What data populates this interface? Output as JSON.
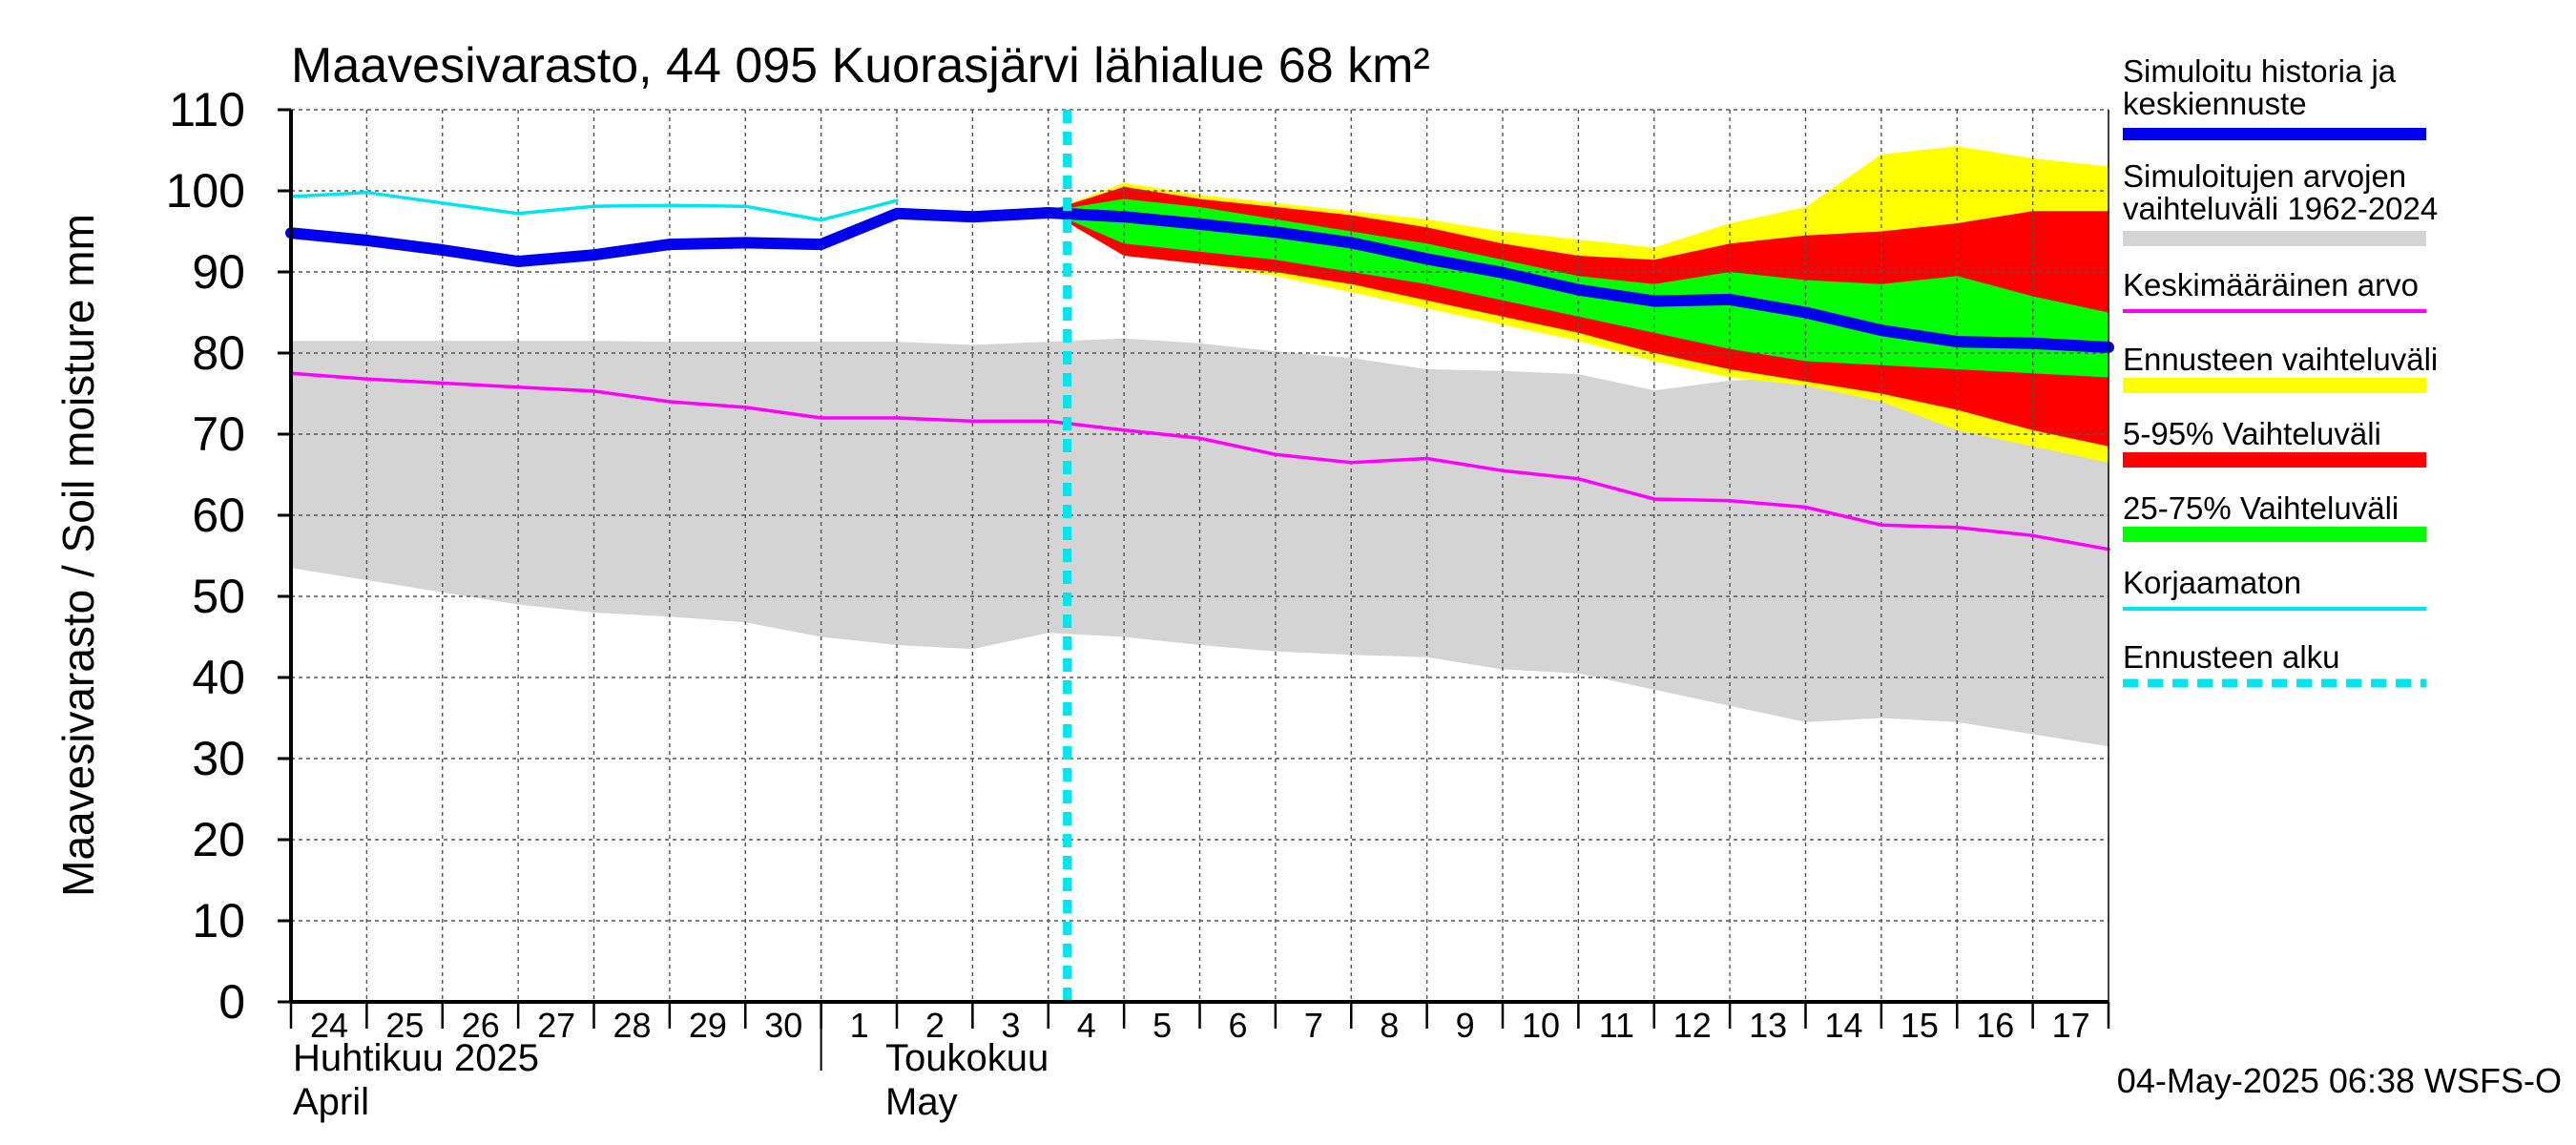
{
  "chart_data": {
    "type": "area",
    "title": "Maavesivarasto, 44 095 Kuorasjärvi lähialue 68 km²",
    "ylabel": "Maavesivarasto / Soil moisture   mm",
    "xlabel": "",
    "ylim": [
      0,
      110
    ],
    "yticks": [
      0,
      10,
      20,
      30,
      40,
      50,
      60,
      70,
      80,
      90,
      100,
      110
    ],
    "grid": true,
    "legend_position": "right",
    "x_tick_labels": [
      "24",
      "25",
      "26",
      "27",
      "28",
      "29",
      "30",
      "1",
      "2",
      "3",
      "4",
      "5",
      "6",
      "7",
      "8",
      "9",
      "10",
      "11",
      "12",
      "13",
      "14",
      "15",
      "16",
      "17"
    ],
    "x_dates": [
      "2025-04-24",
      "2025-04-25",
      "2025-04-26",
      "2025-04-27",
      "2025-04-28",
      "2025-04-29",
      "2025-04-30",
      "2025-05-01",
      "2025-05-02",
      "2025-05-03",
      "2025-05-04",
      "2025-05-05",
      "2025-05-06",
      "2025-05-07",
      "2025-05-08",
      "2025-05-09",
      "2025-05-10",
      "2025-05-11",
      "2025-05-12",
      "2025-05-13",
      "2025-05-14",
      "2025-05-15",
      "2025-05-16",
      "2025-05-17",
      "2025-05-18"
    ],
    "month_labels": [
      {
        "line1": "Huhtikuu  2025",
        "line2": "April"
      },
      {
        "line1": "Toukokuu",
        "line2": "May"
      }
    ],
    "forecast_start": "2025-05-04",
    "timestamp": "04-May-2025 06:38 WSFS-O",
    "colors": {
      "history_range": "#d4d4d4",
      "history_mean": "#ff00ff",
      "simulated": "#0000ee",
      "uncorrected": "#00e5ee",
      "forecast_range": "#ffff00",
      "p5_95": "#ff0000",
      "p25_75": "#00ff00",
      "forecast_start": "#00e5ee"
    },
    "series": {
      "history_range": {
        "dates": [
          "2025-04-24",
          "2025-04-25",
          "2025-04-26",
          "2025-04-27",
          "2025-04-28",
          "2025-04-29",
          "2025-04-30",
          "2025-05-01",
          "2025-05-02",
          "2025-05-03",
          "2025-05-04",
          "2025-05-05",
          "2025-05-06",
          "2025-05-07",
          "2025-05-08",
          "2025-05-09",
          "2025-05-10",
          "2025-05-11",
          "2025-05-12",
          "2025-05-13",
          "2025-05-14",
          "2025-05-15",
          "2025-05-16",
          "2025-05-17",
          "2025-05-18"
        ],
        "upper": [
          81.5,
          81.5,
          81.5,
          81.5,
          81.5,
          81.4,
          81.4,
          81.4,
          81.4,
          81.0,
          81.4,
          81.8,
          81.2,
          80.2,
          79.4,
          78.0,
          77.8,
          77.4,
          75.4,
          76.6,
          77.0,
          77.0,
          76.2,
          76.8,
          75.6
        ],
        "lower": [
          53.5,
          52.0,
          50.5,
          49.0,
          48.0,
          47.5,
          46.8,
          45.0,
          44.0,
          43.5,
          45.5,
          45.0,
          44.0,
          43.2,
          42.8,
          42.5,
          41.0,
          40.5,
          38.5,
          36.5,
          34.5,
          35.0,
          34.5,
          33.0,
          31.5
        ]
      },
      "history_mean": {
        "dates": [
          "2025-04-24",
          "2025-04-25",
          "2025-04-26",
          "2025-04-27",
          "2025-04-28",
          "2025-04-29",
          "2025-04-30",
          "2025-05-01",
          "2025-05-02",
          "2025-05-03",
          "2025-05-04",
          "2025-05-05",
          "2025-05-06",
          "2025-05-07",
          "2025-05-08",
          "2025-05-09",
          "2025-05-10",
          "2025-05-11",
          "2025-05-12",
          "2025-05-13",
          "2025-05-14",
          "2025-05-15",
          "2025-05-16",
          "2025-05-17",
          "2025-05-18"
        ],
        "values": [
          77.5,
          76.8,
          76.3,
          75.8,
          75.3,
          74.0,
          73.3,
          72.0,
          72.0,
          71.6,
          71.6,
          70.5,
          69.5,
          67.5,
          66.5,
          67.0,
          65.5,
          64.5,
          62.0,
          61.8,
          61.0,
          58.8,
          58.5,
          57.5,
          55.8
        ]
      },
      "uncorrected": {
        "dates": [
          "2025-04-24",
          "2025-04-25",
          "2025-04-26",
          "2025-04-27",
          "2025-04-28",
          "2025-04-29",
          "2025-04-30",
          "2025-05-01",
          "2025-05-02"
        ],
        "values": [
          99.3,
          99.8,
          98.5,
          97.2,
          98.1,
          98.2,
          98.1,
          96.4,
          98.8
        ]
      },
      "simulated": {
        "dates": [
          "2025-04-24",
          "2025-04-25",
          "2025-04-26",
          "2025-04-27",
          "2025-04-28",
          "2025-04-29",
          "2025-04-30",
          "2025-05-01",
          "2025-05-02",
          "2025-05-03",
          "2025-05-04",
          "2025-05-05",
          "2025-05-06",
          "2025-05-07",
          "2025-05-08",
          "2025-05-09",
          "2025-05-10",
          "2025-05-11",
          "2025-05-12",
          "2025-05-13",
          "2025-05-14",
          "2025-05-15",
          "2025-05-16",
          "2025-05-17",
          "2025-05-18"
        ],
        "values": [
          94.8,
          93.9,
          92.7,
          91.3,
          92.1,
          93.4,
          93.6,
          93.4,
          97.2,
          96.8,
          97.3,
          96.8,
          95.9,
          94.9,
          93.6,
          91.6,
          89.9,
          87.8,
          86.4,
          86.6,
          85.0,
          82.8,
          81.4,
          81.2,
          80.7
        ]
      },
      "forecast_range": {
        "dates": [
          "2025-05-04",
          "2025-05-05",
          "2025-05-06",
          "2025-05-07",
          "2025-05-08",
          "2025-05-09",
          "2025-05-10",
          "2025-05-11",
          "2025-05-12",
          "2025-05-13",
          "2025-05-14",
          "2025-05-15",
          "2025-05-16",
          "2025-05-17",
          "2025-05-18"
        ],
        "upper": [
          97.5,
          101.0,
          99.5,
          98.5,
          97.5,
          96.5,
          95.0,
          94.0,
          93.0,
          96.0,
          98.0,
          104.5,
          105.5,
          104.0,
          103.0
        ],
        "lower": [
          97.5,
          92.0,
          91.0,
          89.5,
          87.5,
          85.5,
          83.5,
          81.5,
          79.0,
          77.0,
          76.0,
          74.0,
          70.5,
          68.5,
          66.5
        ]
      },
      "p5_95": {
        "dates": [
          "2025-05-04",
          "2025-05-05",
          "2025-05-06",
          "2025-05-07",
          "2025-05-08",
          "2025-05-09",
          "2025-05-10",
          "2025-05-11",
          "2025-05-12",
          "2025-05-13",
          "2025-05-14",
          "2025-05-15",
          "2025-05-16",
          "2025-05-17",
          "2025-05-18"
        ],
        "upper": [
          97.5,
          100.5,
          99.0,
          98.0,
          97.0,
          95.5,
          93.5,
          92.0,
          91.5,
          93.5,
          94.5,
          95.0,
          96.0,
          97.5,
          97.5
        ],
        "lower": [
          97.5,
          92.0,
          91.0,
          90.0,
          88.5,
          86.5,
          84.5,
          82.5,
          80.0,
          78.0,
          76.5,
          75.0,
          73.0,
          70.5,
          68.5
        ]
      },
      "p25_75": {
        "dates": [
          "2025-05-04",
          "2025-05-05",
          "2025-05-06",
          "2025-05-07",
          "2025-05-08",
          "2025-05-09",
          "2025-05-10",
          "2025-05-11",
          "2025-05-12",
          "2025-05-13",
          "2025-05-14",
          "2025-05-15",
          "2025-05-16",
          "2025-05-17",
          "2025-05-18"
        ],
        "upper": [
          97.5,
          99.0,
          98.0,
          96.5,
          95.0,
          93.5,
          91.5,
          89.5,
          88.5,
          90.0,
          89.0,
          88.5,
          89.5,
          87.0,
          85.0
        ],
        "lower": [
          97.5,
          93.5,
          92.5,
          91.5,
          90.0,
          88.5,
          86.5,
          84.5,
          82.5,
          80.5,
          79.0,
          78.5,
          78.0,
          77.5,
          77.0
        ]
      }
    }
  },
  "legend": {
    "items": [
      {
        "key": "simulated",
        "line1": "Simuloitu historia ja",
        "line2": "keskiennuste",
        "swatch": "thick"
      },
      {
        "key": "history_range",
        "line1": "Simuloitujen arvojen",
        "line2": "vaihteluväli 1962-2024",
        "swatch": "bar"
      },
      {
        "key": "history_mean",
        "line1": "Keskimääräinen arvo",
        "line2": "",
        "swatch": "line"
      },
      {
        "key": "forecast_range",
        "line1": "Ennusteen vaihteluväli",
        "line2": "",
        "swatch": "bar"
      },
      {
        "key": "p5_95",
        "line1": "5-95% Vaihteluväli",
        "line2": "",
        "swatch": "bar"
      },
      {
        "key": "p25_75",
        "line1": "25-75% Vaihteluväli",
        "line2": "",
        "swatch": "bar"
      },
      {
        "key": "uncorrected",
        "line1": "Korjaamaton",
        "line2": "",
        "swatch": "line"
      },
      {
        "key": "forecast_start",
        "line1": "Ennusteen alku",
        "line2": "",
        "swatch": "dashed"
      }
    ]
  }
}
